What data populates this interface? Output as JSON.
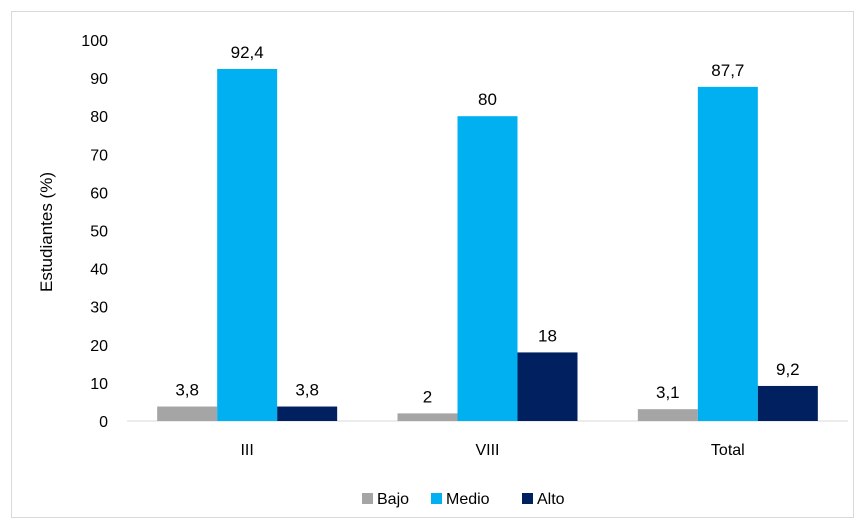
{
  "chart_data": {
    "type": "bar",
    "categories": [
      "III",
      "VIII",
      "Total"
    ],
    "series": [
      {
        "name": "Bajo",
        "values": [
          3.8,
          2,
          3.1
        ],
        "labels": [
          "3,8",
          "2",
          "3,1"
        ],
        "color": "#a5a5a5"
      },
      {
        "name": "Medio",
        "values": [
          92.4,
          80,
          87.7
        ],
        "labels": [
          "92,4",
          "80",
          "87,7"
        ],
        "color": "#00b0f0"
      },
      {
        "name": "Alto",
        "values": [
          3.8,
          18,
          9.2
        ],
        "labels": [
          "3,8",
          "18",
          "9,2"
        ],
        "color": "#002060"
      }
    ],
    "title": "",
    "xlabel": "",
    "ylabel": "Estudiantes (%)",
    "ylim": [
      0,
      100
    ],
    "yticks": [
      0,
      10,
      20,
      30,
      40,
      50,
      60,
      70,
      80,
      90,
      100
    ],
    "grid": false,
    "legend_position": "bottom"
  }
}
